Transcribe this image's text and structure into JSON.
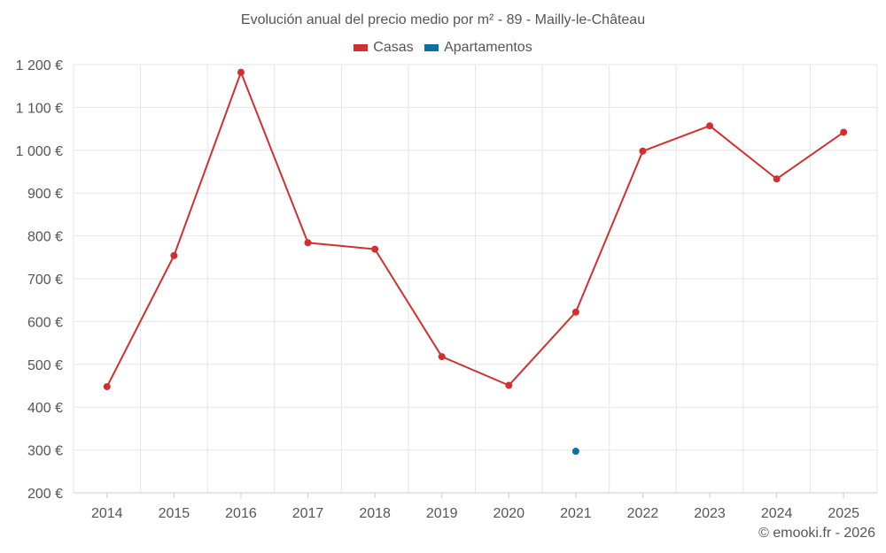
{
  "chart_data": {
    "type": "line",
    "title": "Evolución anual del precio medio por m² - 89 - Mailly-le-Château",
    "categories": [
      "2014",
      "2015",
      "2016",
      "2017",
      "2018",
      "2019",
      "2020",
      "2021",
      "2022",
      "2023",
      "2024",
      "2025"
    ],
    "series": [
      {
        "name": "Casas",
        "color": "#d32f2f",
        "values": [
          448,
          754,
          1182,
          784,
          769,
          518,
          451,
          622,
          998,
          1057,
          933,
          1042
        ]
      },
      {
        "name": "Apartamentos",
        "color": "#0d6ea3",
        "values": [
          null,
          null,
          null,
          null,
          null,
          null,
          null,
          297,
          null,
          null,
          null,
          null
        ]
      }
    ],
    "ylim": [
      200,
      1200
    ],
    "yticks": [
      200,
      300,
      400,
      500,
      600,
      700,
      800,
      900,
      1000,
      1100,
      1200
    ],
    "ytick_labels": [
      "200 €",
      "300 €",
      "400 €",
      "500 €",
      "600 €",
      "700 €",
      "800 €",
      "900 €",
      "1 000 €",
      "1 100 €",
      "1 200 €"
    ],
    "xlabel": "",
    "ylabel": "",
    "grid": true,
    "legend_position": "top-center"
  },
  "footer": "© emooki.fr - 2026"
}
